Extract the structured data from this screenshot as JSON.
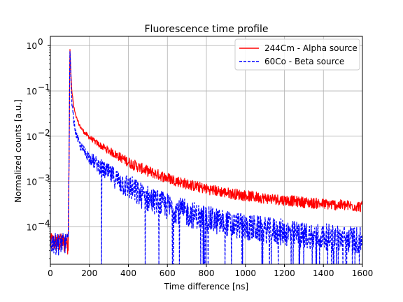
{
  "chart_data": {
    "type": "line",
    "title": "Fluorescence time profile",
    "xlabel": "Time difference [ns]",
    "ylabel": "Normalized counts [a.u.]",
    "xlim": [
      0,
      1600
    ],
    "ylim": [
      1.5e-05,
      1.6
    ],
    "yscale": "log",
    "grid": true,
    "legend_position": "top-right",
    "x_ticks": [
      0,
      200,
      400,
      600,
      800,
      1000,
      1200,
      1400,
      1600
    ],
    "y_ticks": [
      0.0001,
      0.001,
      0.01,
      0.1,
      1
    ],
    "y_tick_labels": [
      "10",
      "10",
      "10",
      "10",
      "10"
    ],
    "y_tick_exponents": [
      "−4",
      "−3",
      "−2",
      "−1",
      "0"
    ],
    "series": [
      {
        "name": "244Cm - Alpha source",
        "color": "#ff0000",
        "style": "solid",
        "x": [
          0,
          50,
          90,
          95,
          100,
          105,
          110,
          120,
          130,
          150,
          175,
          200,
          250,
          300,
          350,
          400,
          450,
          500,
          600,
          700,
          800,
          900,
          1000,
          1100,
          1200,
          1300,
          1400,
          1500,
          1600
        ],
        "y": [
          4e-05,
          4e-05,
          4e-05,
          0.001,
          1.0,
          0.25,
          0.1,
          0.045,
          0.028,
          0.017,
          0.012,
          0.0095,
          0.0065,
          0.0048,
          0.0036,
          0.0027,
          0.0021,
          0.0017,
          0.0012,
          0.00088,
          0.00069,
          0.00057,
          0.00049,
          0.00043,
          0.00039,
          0.00035,
          0.00032,
          0.0003,
          0.00028
        ]
      },
      {
        "name": "60Co - Beta source",
        "color": "#0000ff",
        "style": "dashed",
        "x": [
          0,
          50,
          90,
          95,
          100,
          105,
          110,
          120,
          130,
          150,
          175,
          200,
          250,
          300,
          350,
          400,
          450,
          500,
          600,
          700,
          800,
          900,
          1000,
          1100,
          1200,
          1300,
          1400,
          1500,
          1600
        ],
        "y": [
          4e-05,
          4e-05,
          4e-05,
          0.001,
          1.0,
          0.2,
          0.06,
          0.022,
          0.012,
          0.0065,
          0.0045,
          0.0034,
          0.0022,
          0.0015,
          0.00105,
          0.00075,
          0.00055,
          0.00042,
          0.00028,
          0.0002,
          0.00015,
          0.00012,
          0.0001,
          8.5e-05,
          7.5e-05,
          6.5e-05,
          6e-05,
          5.5e-05,
          5e-05
        ]
      }
    ]
  }
}
